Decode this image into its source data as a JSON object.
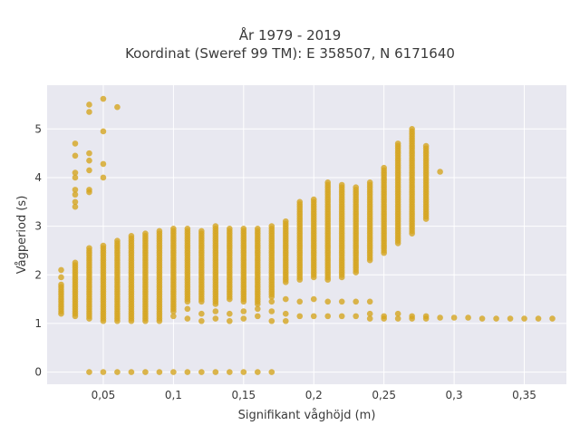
{
  "title_lines": [
    "År 1979 - 2019",
    "Koordinat (Sweref 99 TM): E 358507, N 6171640"
  ],
  "colors": {
    "marker": "#d4a520",
    "plot_bg": "#e8e8f0",
    "grid": "#ffffff"
  },
  "chart_data": {
    "type": "scatter",
    "title": "År 1979 - 2019 / Koordinat (Sweref 99 TM): E 358507, N 6171640",
    "xlabel": "Signifikant våghöjd (m)",
    "ylabel": "Vågperiod (s)",
    "xlim": [
      0.01,
      0.38
    ],
    "ylim": [
      -0.25,
      5.9
    ],
    "x_ticks": [
      0.05,
      0.1,
      0.15,
      0.2,
      0.25,
      0.3,
      0.35
    ],
    "x_tick_labels": [
      "0,05",
      "0,1",
      "0,15",
      "0,2",
      "0,25",
      "0,3",
      "0,35"
    ],
    "y_ticks": [
      0,
      1,
      2,
      3,
      4,
      5
    ],
    "y_tick_labels": [
      "0",
      "1",
      "2",
      "3",
      "4",
      "5"
    ],
    "grid": true,
    "series": [
      {
        "ranges": [
          {
            "x": 0.02,
            "ymin": 1.2,
            "ymax": 1.8
          },
          {
            "x": 0.03,
            "ymin": 1.15,
            "ymax": 2.25
          },
          {
            "x": 0.04,
            "ymin": 1.1,
            "ymax": 2.55
          },
          {
            "x": 0.05,
            "ymin": 1.05,
            "ymax": 2.6
          },
          {
            "x": 0.06,
            "ymin": 1.05,
            "ymax": 2.7
          },
          {
            "x": 0.07,
            "ymin": 1.05,
            "ymax": 2.8
          },
          {
            "x": 0.08,
            "ymin": 1.05,
            "ymax": 2.85
          },
          {
            "x": 0.09,
            "ymin": 1.05,
            "ymax": 2.9
          },
          {
            "x": 0.1,
            "ymin": 1.25,
            "ymax": 2.95
          },
          {
            "x": 0.11,
            "ymin": 1.45,
            "ymax": 2.95
          },
          {
            "x": 0.12,
            "ymin": 1.45,
            "ymax": 2.9
          },
          {
            "x": 0.13,
            "ymin": 1.4,
            "ymax": 3.0
          },
          {
            "x": 0.14,
            "ymin": 1.5,
            "ymax": 2.95
          },
          {
            "x": 0.15,
            "ymin": 1.45,
            "ymax": 2.95
          },
          {
            "x": 0.16,
            "ymin": 1.4,
            "ymax": 2.95
          },
          {
            "x": 0.17,
            "ymin": 1.55,
            "ymax": 3.0
          },
          {
            "x": 0.18,
            "ymin": 1.85,
            "ymax": 3.1
          },
          {
            "x": 0.19,
            "ymin": 1.9,
            "ymax": 3.5
          },
          {
            "x": 0.2,
            "ymin": 1.95,
            "ymax": 3.55
          },
          {
            "x": 0.21,
            "ymin": 1.9,
            "ymax": 3.9
          },
          {
            "x": 0.22,
            "ymin": 1.95,
            "ymax": 3.85
          },
          {
            "x": 0.23,
            "ymin": 2.05,
            "ymax": 3.8
          },
          {
            "x": 0.24,
            "ymin": 2.3,
            "ymax": 3.9
          },
          {
            "x": 0.25,
            "ymin": 2.45,
            "ymax": 4.2
          },
          {
            "x": 0.26,
            "ymin": 2.65,
            "ymax": 4.7
          },
          {
            "x": 0.27,
            "ymin": 2.85,
            "ymax": 5.0
          },
          {
            "x": 0.28,
            "ymin": 3.2,
            "ymax": 4.65
          }
        ],
        "points": [
          {
            "x": 0.02,
            "y": 2.1
          },
          {
            "x": 0.02,
            "y": 1.95
          },
          {
            "x": 0.03,
            "y": 4.7
          },
          {
            "x": 0.03,
            "y": 4.45
          },
          {
            "x": 0.03,
            "y": 4.1
          },
          {
            "x": 0.03,
            "y": 4.0
          },
          {
            "x": 0.03,
            "y": 3.75
          },
          {
            "x": 0.03,
            "y": 3.65
          },
          {
            "x": 0.03,
            "y": 3.5
          },
          {
            "x": 0.03,
            "y": 3.4
          },
          {
            "x": 0.04,
            "y": 5.5
          },
          {
            "x": 0.04,
            "y": 5.35
          },
          {
            "x": 0.04,
            "y": 4.5
          },
          {
            "x": 0.04,
            "y": 4.35
          },
          {
            "x": 0.04,
            "y": 4.15
          },
          {
            "x": 0.04,
            "y": 3.75
          },
          {
            "x": 0.04,
            "y": 3.7
          },
          {
            "x": 0.05,
            "y": 5.62
          },
          {
            "x": 0.05,
            "y": 4.95
          },
          {
            "x": 0.05,
            "y": 4.28
          },
          {
            "x": 0.05,
            "y": 4.0
          },
          {
            "x": 0.06,
            "y": 5.45
          },
          {
            "x": 0.04,
            "y": 0
          },
          {
            "x": 0.05,
            "y": 0
          },
          {
            "x": 0.06,
            "y": 0
          },
          {
            "x": 0.07,
            "y": 0
          },
          {
            "x": 0.08,
            "y": 0
          },
          {
            "x": 0.09,
            "y": 0
          },
          {
            "x": 0.1,
            "y": 0
          },
          {
            "x": 0.11,
            "y": 0
          },
          {
            "x": 0.12,
            "y": 0
          },
          {
            "x": 0.13,
            "y": 0
          },
          {
            "x": 0.14,
            "y": 0
          },
          {
            "x": 0.15,
            "y": 0
          },
          {
            "x": 0.16,
            "y": 0
          },
          {
            "x": 0.17,
            "y": 0
          },
          {
            "x": 0.1,
            "y": 1.15
          },
          {
            "x": 0.11,
            "y": 1.1
          },
          {
            "x": 0.11,
            "y": 1.3
          },
          {
            "x": 0.12,
            "y": 1.2
          },
          {
            "x": 0.12,
            "y": 1.05
          },
          {
            "x": 0.13,
            "y": 1.25
          },
          {
            "x": 0.13,
            "y": 1.1
          },
          {
            "x": 0.14,
            "y": 1.2
          },
          {
            "x": 0.14,
            "y": 1.05
          },
          {
            "x": 0.15,
            "y": 1.25
          },
          {
            "x": 0.15,
            "y": 1.1
          },
          {
            "x": 0.16,
            "y": 1.3
          },
          {
            "x": 0.16,
            "y": 1.15
          },
          {
            "x": 0.17,
            "y": 1.45
          },
          {
            "x": 0.17,
            "y": 1.25
          },
          {
            "x": 0.17,
            "y": 1.05
          },
          {
            "x": 0.18,
            "y": 1.5
          },
          {
            "x": 0.18,
            "y": 1.2
          },
          {
            "x": 0.18,
            "y": 1.05
          },
          {
            "x": 0.19,
            "y": 1.45
          },
          {
            "x": 0.19,
            "y": 1.15
          },
          {
            "x": 0.2,
            "y": 1.5
          },
          {
            "x": 0.2,
            "y": 1.15
          },
          {
            "x": 0.21,
            "y": 1.45
          },
          {
            "x": 0.21,
            "y": 1.15
          },
          {
            "x": 0.22,
            "y": 1.45
          },
          {
            "x": 0.22,
            "y": 1.15
          },
          {
            "x": 0.23,
            "y": 1.45
          },
          {
            "x": 0.23,
            "y": 1.15
          },
          {
            "x": 0.24,
            "y": 1.45
          },
          {
            "x": 0.24,
            "y": 1.2
          },
          {
            "x": 0.24,
            "y": 1.1
          },
          {
            "x": 0.25,
            "y": 1.15
          },
          {
            "x": 0.25,
            "y": 1.1
          },
          {
            "x": 0.26,
            "y": 1.2
          },
          {
            "x": 0.26,
            "y": 1.1
          },
          {
            "x": 0.27,
            "y": 1.15
          },
          {
            "x": 0.27,
            "y": 1.1
          },
          {
            "x": 0.28,
            "y": 1.15
          },
          {
            "x": 0.28,
            "y": 1.1
          },
          {
            "x": 0.29,
            "y": 1.12
          },
          {
            "x": 0.3,
            "y": 1.12
          },
          {
            "x": 0.31,
            "y": 1.12
          },
          {
            "x": 0.32,
            "y": 1.1
          },
          {
            "x": 0.33,
            "y": 1.1
          },
          {
            "x": 0.34,
            "y": 1.1
          },
          {
            "x": 0.35,
            "y": 1.1
          },
          {
            "x": 0.36,
            "y": 1.1
          },
          {
            "x": 0.37,
            "y": 1.1
          },
          {
            "x": 0.29,
            "y": 4.12
          },
          {
            "x": 0.28,
            "y": 3.15
          }
        ]
      }
    ]
  }
}
